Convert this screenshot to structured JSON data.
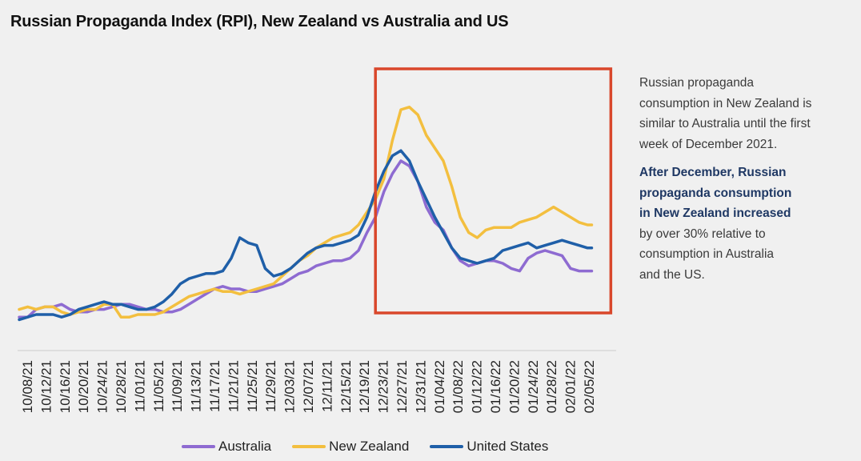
{
  "title": "Russian Propaganda Index (RPI), New Zealand vs Australia and US",
  "annotation": {
    "line1": "Russian propaganda",
    "line2": "consumption in New Zealand is",
    "line3": "similar to Australia until the first",
    "line4": "week of December 2021.",
    "bold1": "After December, Russian",
    "bold2": "propaganda consumption",
    "bold3": "in New Zealand increased",
    "rest1": "by over 30% relative to",
    "rest2": "consumption in Australia",
    "rest3": "and the US."
  },
  "chart_data": {
    "type": "line",
    "xlabel": "",
    "ylabel": "",
    "ylim": [
      0,
      100
    ],
    "x_ticks": [
      "10/08/21",
      "10/12/21",
      "10/16/21",
      "10/20/21",
      "10/24/21",
      "10/28/21",
      "11/01/21",
      "11/05/21",
      "11/09/21",
      "11/13/21",
      "11/17/21",
      "11/21/21",
      "11/25/21",
      "11/29/21",
      "12/03/21",
      "12/07/21",
      "12/11/21",
      "12/15/21",
      "12/19/21",
      "12/23/21",
      "12/27/21",
      "12/31/21",
      "01/04/22",
      "01/08/22",
      "01/12/22",
      "01/16/22",
      "01/20/22",
      "01/24/22",
      "01/28/22",
      "02/01/22",
      "02/05/22"
    ],
    "highlight": {
      "from": "12/21/21",
      "to": "01/30/22",
      "color": "#d9472b"
    },
    "legend_position": "bottom",
    "series": [
      {
        "name": "Australia",
        "color": "#8e6bd1",
        "points": [
          [
            0,
            9
          ],
          [
            2,
            9
          ],
          [
            4,
            12
          ],
          [
            6,
            13
          ],
          [
            8,
            13
          ],
          [
            10,
            14
          ],
          [
            12,
            12
          ],
          [
            14,
            11
          ],
          [
            16,
            11
          ],
          [
            18,
            12
          ],
          [
            20,
            12
          ],
          [
            22,
            13
          ],
          [
            24,
            14
          ],
          [
            26,
            14
          ],
          [
            28,
            13
          ],
          [
            30,
            12
          ],
          [
            32,
            12
          ],
          [
            34,
            11
          ],
          [
            36,
            11
          ],
          [
            38,
            12
          ],
          [
            40,
            14
          ],
          [
            42,
            16
          ],
          [
            44,
            18
          ],
          [
            46,
            20
          ],
          [
            48,
            21
          ],
          [
            50,
            20
          ],
          [
            52,
            20
          ],
          [
            54,
            19
          ],
          [
            56,
            19
          ],
          [
            58,
            20
          ],
          [
            60,
            21
          ],
          [
            62,
            22
          ],
          [
            64,
            24
          ],
          [
            66,
            26
          ],
          [
            68,
            27
          ],
          [
            70,
            29
          ],
          [
            72,
            30
          ],
          [
            74,
            31
          ],
          [
            76,
            31
          ],
          [
            78,
            32
          ],
          [
            80,
            35
          ],
          [
            82,
            42
          ],
          [
            84,
            48
          ],
          [
            86,
            58
          ],
          [
            88,
            65
          ],
          [
            90,
            70
          ],
          [
            92,
            68
          ],
          [
            94,
            62
          ],
          [
            96,
            52
          ],
          [
            98,
            46
          ],
          [
            100,
            43
          ],
          [
            102,
            36
          ],
          [
            104,
            31
          ],
          [
            106,
            29
          ],
          [
            108,
            30
          ],
          [
            110,
            31
          ],
          [
            112,
            31
          ],
          [
            114,
            30
          ],
          [
            116,
            28
          ],
          [
            118,
            27
          ],
          [
            120,
            32
          ],
          [
            122,
            34
          ],
          [
            124,
            35
          ],
          [
            126,
            34
          ],
          [
            128,
            33
          ],
          [
            130,
            28
          ],
          [
            132,
            27
          ],
          [
            134,
            27
          ],
          [
            135,
            27
          ]
        ]
      },
      {
        "name": "New Zealand",
        "color": "#f3bf3f",
        "points": [
          [
            0,
            12
          ],
          [
            2,
            13
          ],
          [
            4,
            12
          ],
          [
            6,
            13
          ],
          [
            8,
            13
          ],
          [
            10,
            11
          ],
          [
            12,
            10
          ],
          [
            14,
            11
          ],
          [
            16,
            12
          ],
          [
            18,
            12
          ],
          [
            20,
            14
          ],
          [
            22,
            14
          ],
          [
            24,
            9
          ],
          [
            26,
            9
          ],
          [
            28,
            10
          ],
          [
            30,
            10
          ],
          [
            32,
            10
          ],
          [
            34,
            11
          ],
          [
            36,
            13
          ],
          [
            38,
            15
          ],
          [
            40,
            17
          ],
          [
            42,
            18
          ],
          [
            44,
            19
          ],
          [
            46,
            20
          ],
          [
            48,
            19
          ],
          [
            50,
            19
          ],
          [
            52,
            18
          ],
          [
            54,
            19
          ],
          [
            56,
            20
          ],
          [
            58,
            21
          ],
          [
            60,
            22
          ],
          [
            62,
            25
          ],
          [
            64,
            28
          ],
          [
            66,
            31
          ],
          [
            68,
            33
          ],
          [
            70,
            36
          ],
          [
            72,
            38
          ],
          [
            74,
            40
          ],
          [
            76,
            41
          ],
          [
            78,
            42
          ],
          [
            80,
            45
          ],
          [
            82,
            50
          ],
          [
            84,
            55
          ],
          [
            86,
            63
          ],
          [
            88,
            78
          ],
          [
            90,
            90
          ],
          [
            92,
            91
          ],
          [
            94,
            88
          ],
          [
            96,
            80
          ],
          [
            98,
            75
          ],
          [
            100,
            70
          ],
          [
            102,
            60
          ],
          [
            104,
            48
          ],
          [
            106,
            42
          ],
          [
            108,
            40
          ],
          [
            110,
            43
          ],
          [
            112,
            44
          ],
          [
            114,
            44
          ],
          [
            116,
            44
          ],
          [
            118,
            46
          ],
          [
            120,
            47
          ],
          [
            122,
            48
          ],
          [
            124,
            50
          ],
          [
            126,
            52
          ],
          [
            128,
            50
          ],
          [
            130,
            48
          ],
          [
            132,
            46
          ],
          [
            134,
            45
          ],
          [
            135,
            45
          ]
        ]
      },
      {
        "name": "United States",
        "color": "#1f5fa8",
        "points": [
          [
            0,
            8
          ],
          [
            2,
            9
          ],
          [
            4,
            10
          ],
          [
            6,
            10
          ],
          [
            8,
            10
          ],
          [
            10,
            9
          ],
          [
            12,
            10
          ],
          [
            14,
            12
          ],
          [
            16,
            13
          ],
          [
            18,
            14
          ],
          [
            20,
            15
          ],
          [
            22,
            14
          ],
          [
            24,
            14
          ],
          [
            26,
            13
          ],
          [
            28,
            12
          ],
          [
            30,
            12
          ],
          [
            32,
            13
          ],
          [
            34,
            15
          ],
          [
            36,
            18
          ],
          [
            38,
            22
          ],
          [
            40,
            24
          ],
          [
            42,
            25
          ],
          [
            44,
            26
          ],
          [
            46,
            26
          ],
          [
            48,
            27
          ],
          [
            50,
            32
          ],
          [
            52,
            40
          ],
          [
            54,
            38
          ],
          [
            56,
            37
          ],
          [
            58,
            28
          ],
          [
            60,
            25
          ],
          [
            62,
            26
          ],
          [
            64,
            28
          ],
          [
            66,
            31
          ],
          [
            68,
            34
          ],
          [
            70,
            36
          ],
          [
            72,
            37
          ],
          [
            74,
            37
          ],
          [
            76,
            38
          ],
          [
            78,
            39
          ],
          [
            80,
            41
          ],
          [
            82,
            48
          ],
          [
            84,
            58
          ],
          [
            86,
            66
          ],
          [
            88,
            72
          ],
          [
            90,
            74
          ],
          [
            92,
            70
          ],
          [
            94,
            62
          ],
          [
            96,
            55
          ],
          [
            98,
            48
          ],
          [
            100,
            42
          ],
          [
            102,
            36
          ],
          [
            104,
            32
          ],
          [
            106,
            31
          ],
          [
            108,
            30
          ],
          [
            110,
            31
          ],
          [
            112,
            32
          ],
          [
            114,
            35
          ],
          [
            116,
            36
          ],
          [
            118,
            37
          ],
          [
            120,
            38
          ],
          [
            122,
            36
          ],
          [
            124,
            37
          ],
          [
            126,
            38
          ],
          [
            128,
            39
          ],
          [
            130,
            38
          ],
          [
            132,
            37
          ],
          [
            134,
            36
          ],
          [
            135,
            36
          ]
        ]
      }
    ]
  }
}
